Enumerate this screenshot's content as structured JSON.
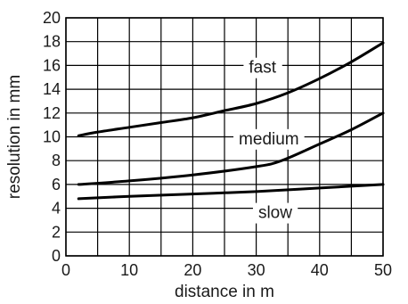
{
  "chart_data": {
    "type": "line",
    "xlabel": "distance in m",
    "ylabel": "resolution in mm",
    "xlim": [
      0,
      50
    ],
    "ylim": [
      0,
      20
    ],
    "xticks": [
      0,
      10,
      20,
      30,
      40,
      50
    ],
    "yticks": [
      0,
      2,
      4,
      6,
      8,
      10,
      12,
      14,
      16,
      18,
      20
    ],
    "grid": true,
    "series": [
      {
        "name": "fast",
        "x": [
          2,
          5,
          10,
          15,
          20,
          25,
          30,
          35,
          40,
          45,
          50
        ],
        "y": [
          10.1,
          10.4,
          10.8,
          11.2,
          11.6,
          12.2,
          12.8,
          13.7,
          14.9,
          16.3,
          17.9
        ]
      },
      {
        "name": "medium",
        "x": [
          2,
          10,
          20,
          30,
          34,
          40,
          45,
          50
        ],
        "y": [
          6.0,
          6.3,
          6.8,
          7.5,
          8.0,
          9.4,
          10.6,
          12.0
        ]
      },
      {
        "name": "slow",
        "x": [
          2,
          10,
          20,
          30,
          40,
          50
        ],
        "y": [
          4.8,
          5.0,
          5.2,
          5.4,
          5.7,
          6.0
        ]
      }
    ],
    "annotations": [
      {
        "text": "fast",
        "x": 31,
        "y": 15.9
      },
      {
        "text": "medium",
        "x": 32,
        "y": 9.9
      },
      {
        "text": "slow",
        "x": 33,
        "y": 3.7
      }
    ]
  }
}
